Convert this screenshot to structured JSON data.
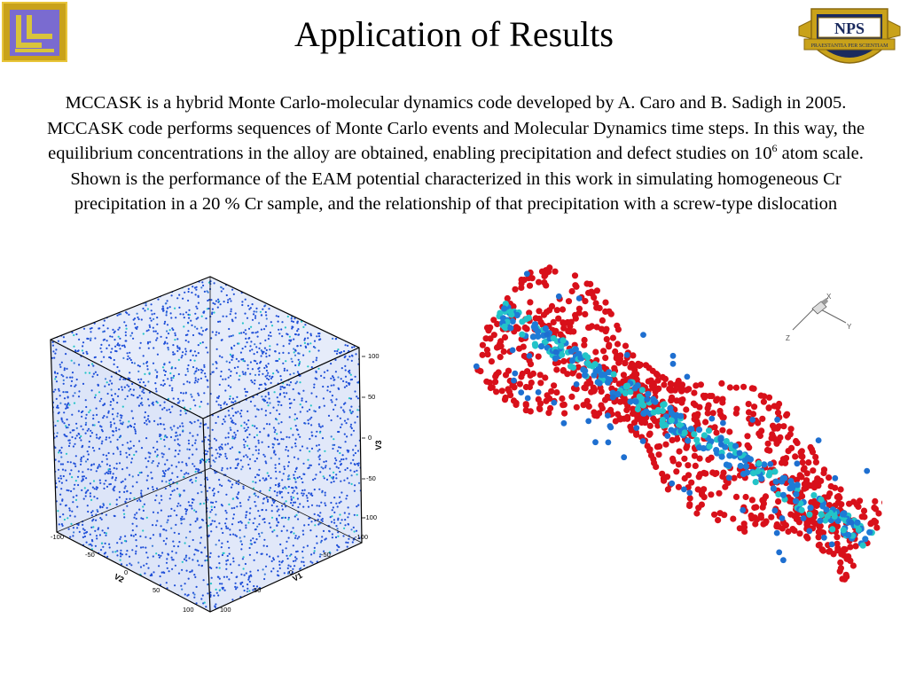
{
  "slide": {
    "title": "Application of Results",
    "body_before_sup": "MCCASK is a hybrid Monte Carlo-molecular dynamics code developed by A. Caro and B. Sadigh in 2005. MCCASK code performs sequences of Monte Carlo events and Molecular Dynamics time steps.  In this way, the equilibrium concentrations in the alloy are obtained, enabling precipitation and defect studies on 10",
    "body_sup": "6",
    "body_after_sup": " atom scale. Shown is the performance of the EAM potential characterized in this work in simulating homogeneous Cr precipitation in a 20 % Cr sample, and the relationship of that precipitation with a screw-type dislocation"
  },
  "logos": {
    "right_text": "NPS",
    "right_motto": "PRAESTANTIA PER SCIENTIAM"
  },
  "cube_plot": {
    "v3_label": "V3",
    "v2_label": "V2",
    "v1_label": "V1",
    "v3_ticks": [
      "100",
      "50",
      "0",
      "-50",
      "-100"
    ],
    "v2_ticks": [
      "-100",
      "-50",
      "0",
      "50",
      "100"
    ],
    "v1_ticks": [
      "-100",
      "-50",
      "0",
      "50",
      "100"
    ]
  },
  "triad": {
    "x_label": "X",
    "y_label": "Y",
    "z_label": "Z"
  },
  "colors": {
    "atom_blue": "#1f4fd8",
    "atom_cyan": "#23c4c8",
    "atom_red": "#d8101a",
    "logo_gold": "#c9a21a",
    "logo_purple": "#7a6bd0",
    "nps_navy": "#1a2a5e"
  }
}
